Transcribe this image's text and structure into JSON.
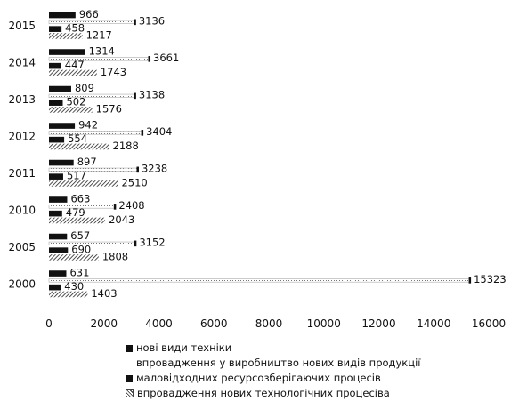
{
  "chart_data": {
    "type": "bar",
    "orientation": "horizontal",
    "categories": [
      "2000",
      "2005",
      "2010",
      "2011",
      "2012",
      "2013",
      "2014",
      "2015"
    ],
    "series": [
      {
        "name": "нові види техніки",
        "values": [
          631,
          657,
          663,
          897,
          942,
          809,
          1314,
          966
        ]
      },
      {
        "name": "впровадження у виробництво нових видів продукції",
        "values": [
          15323,
          3152,
          2408,
          3238,
          3404,
          3138,
          3661,
          3136
        ]
      },
      {
        "name": "маловідходних ресурсозберігаючих процесів",
        "values": [
          430,
          690,
          479,
          517,
          554,
          502,
          447,
          458
        ]
      },
      {
        "name": "впровадження нових технологічних процесіва",
        "values": [
          1403,
          1808,
          2043,
          2510,
          2188,
          1576,
          1743,
          1217
        ]
      }
    ],
    "xlim": [
      0,
      16000
    ],
    "xticks": [
      "0",
      "2000",
      "4000",
      "6000",
      "8000",
      "10000",
      "12000",
      "14000",
      "16000"
    ],
    "grid": false,
    "legend_position": "bottom",
    "colors": {
      "series1": "#111111",
      "series2": "#bdbdbd",
      "series3": "#111111",
      "series4": "#555555"
    }
  }
}
